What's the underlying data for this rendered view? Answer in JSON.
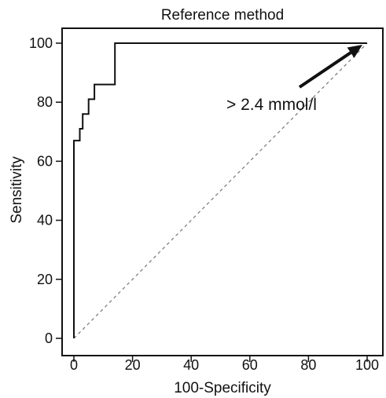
{
  "chart_data": {
    "type": "line",
    "title": "Reference method",
    "xlabel": "100-Specificity",
    "ylabel": "Sensitivity",
    "xlim": [
      0,
      100
    ],
    "ylim": [
      0,
      100
    ],
    "x_ticks": [
      "0",
      "20",
      "40",
      "60",
      "80",
      "100"
    ],
    "y_ticks": [
      "0",
      "20",
      "40",
      "60",
      "80",
      "100"
    ],
    "grid": false,
    "legend": "none",
    "series": [
      {
        "style": "solid step",
        "color": "#111111",
        "points": [
          [
            0,
            0
          ],
          [
            0,
            67
          ],
          [
            2,
            67
          ],
          [
            2,
            71
          ],
          [
            3,
            71
          ],
          [
            3,
            76
          ],
          [
            5,
            76
          ],
          [
            5,
            81
          ],
          [
            7,
            81
          ],
          [
            7,
            86
          ],
          [
            14,
            86
          ],
          [
            14,
            100
          ],
          [
            100,
            100
          ]
        ]
      },
      {
        "style": "dashed diagonal",
        "color": "#777777",
        "points": [
          [
            0,
            0
          ],
          [
            100,
            100
          ]
        ]
      }
    ],
    "annotation": {
      "text": "> 2.4 mmol/l",
      "arrow_target": [
        100,
        100
      ]
    }
  }
}
